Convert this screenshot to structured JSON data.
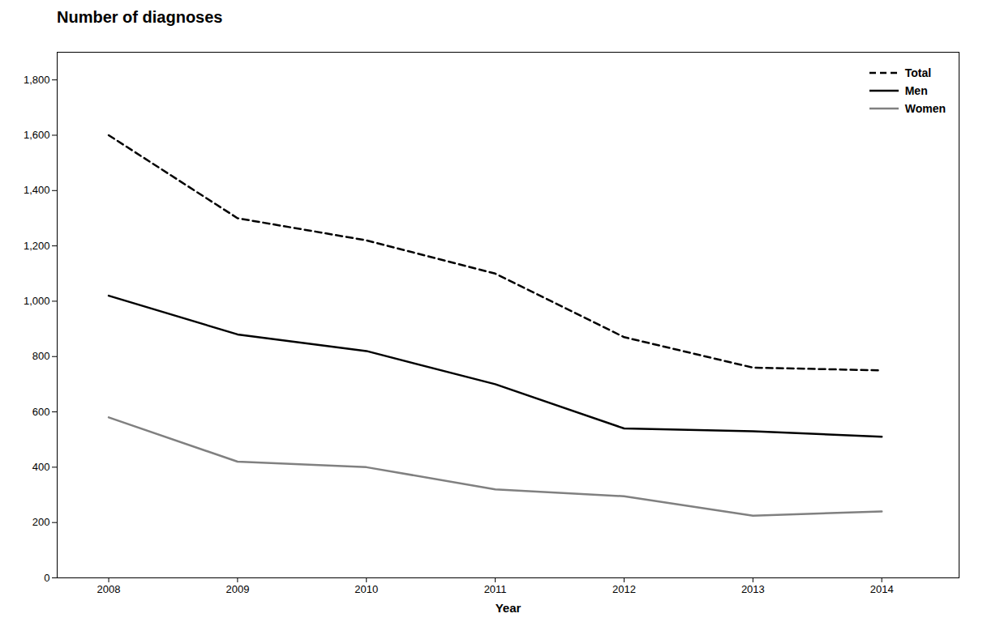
{
  "chart_data": {
    "type": "line",
    "title": "Number of diagnoses",
    "xlabel": "Year",
    "x": [
      2008,
      2009,
      2010,
      2011,
      2012,
      2013,
      2014
    ],
    "series": [
      {
        "name": "Total",
        "color": "#000000",
        "line_style": "dashed",
        "values": [
          1600,
          1300,
          1220,
          1100,
          870,
          760,
          750
        ]
      },
      {
        "name": "Men",
        "color": "#000000",
        "line_style": "solid",
        "values": [
          1020,
          880,
          820,
          700,
          540,
          530,
          510
        ]
      },
      {
        "name": "Women",
        "color": "#808080",
        "line_style": "solid",
        "values": [
          580,
          420,
          400,
          320,
          295,
          225,
          240
        ]
      }
    ],
    "xlim": [
      2007.6,
      2014.6
    ],
    "xticks": [
      2008,
      2009,
      2010,
      2011,
      2012,
      2013,
      2014
    ],
    "ylim": [
      0,
      1900
    ],
    "yticks": [
      0,
      200,
      400,
      600,
      800,
      {
        "value": 1000,
        "label": "1,000"
      },
      {
        "value": 1200,
        "label": "1,200"
      },
      {
        "value": 1400,
        "label": "1,400"
      },
      {
        "value": 1600,
        "label": "1,600"
      },
      {
        "value": 1800,
        "label": "1,800"
      }
    ],
    "grid": false,
    "legend": "upper right"
  }
}
